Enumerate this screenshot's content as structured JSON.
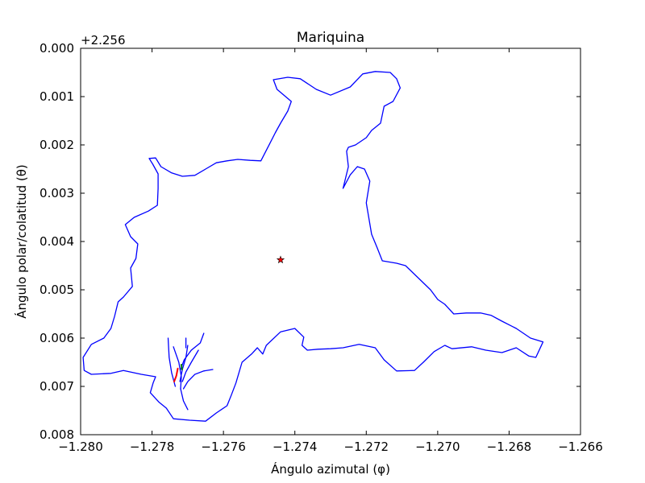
{
  "chart_data": {
    "type": "line",
    "title": "Mariquina",
    "xlabel": "Ángulo azimutal (φ)",
    "ylabel": "Ángulo polar/colatitud (θ)",
    "y_offset_label": "+2.256",
    "xlim": [
      -1.28,
      -1.266
    ],
    "ylim": [
      0.008,
      0.0
    ],
    "y_inverted": true,
    "grid": false,
    "x_ticks": [
      "−1.280",
      "−1.278",
      "−1.276",
      "−1.274",
      "−1.272",
      "−1.270",
      "−1.268",
      "−1.266"
    ],
    "y_ticks": [
      "0.000",
      "0.001",
      "0.002",
      "0.003",
      "0.004",
      "0.005",
      "0.006",
      "0.007",
      "0.008"
    ],
    "colors": {
      "boundary": "#0000ff",
      "river_red": "#ff0000",
      "river_green": "#008000",
      "marker": "#ff0000"
    },
    "boundary": [
      [
        -1.2746,
        0.00065
      ],
      [
        -1.2742,
        0.0006
      ],
      [
        -1.27385,
        0.00063
      ],
      [
        -1.2734,
        0.00085
      ],
      [
        -1.273,
        0.00097
      ],
      [
        -1.27245,
        0.0008
      ],
      [
        -1.2721,
        0.00053
      ],
      [
        -1.27175,
        0.00048
      ],
      [
        -1.27133,
        0.0005
      ],
      [
        -1.27115,
        0.00063
      ],
      [
        -1.27105,
        0.00082
      ],
      [
        -1.27125,
        0.0011
      ],
      [
        -1.2715,
        0.0012
      ],
      [
        -1.2716,
        0.00155
      ],
      [
        -1.27185,
        0.0017
      ],
      [
        -1.272,
        0.00185
      ],
      [
        -1.2723,
        0.002
      ],
      [
        -1.2725,
        0.00205
      ],
      [
        -1.27255,
        0.00213
      ],
      [
        -1.2725,
        0.00245
      ],
      [
        -1.27265,
        0.0029
      ],
      [
        -1.27245,
        0.00262
      ],
      [
        -1.27225,
        0.00245
      ],
      [
        -1.27205,
        0.0025
      ],
      [
        -1.2719,
        0.00275
      ],
      [
        -1.272,
        0.0032
      ],
      [
        -1.27185,
        0.00385
      ],
      [
        -1.2717,
        0.00412
      ],
      [
        -1.27155,
        0.0044
      ],
      [
        -1.27115,
        0.00445
      ],
      [
        -1.2709,
        0.0045
      ],
      [
        -1.27055,
        0.00475
      ],
      [
        -1.2702,
        0.005
      ],
      [
        -1.27,
        0.0052
      ],
      [
        -1.2698,
        0.0053
      ],
      [
        -1.26955,
        0.0055
      ],
      [
        -1.2692,
        0.00548
      ],
      [
        -1.2688,
        0.00548
      ],
      [
        -1.2685,
        0.00553
      ],
      [
        -1.2682,
        0.00565
      ],
      [
        -1.2678,
        0.0058
      ],
      [
        -1.2674,
        0.006
      ],
      [
        -1.26705,
        0.00608
      ],
      [
        -1.26725,
        0.0064
      ],
      [
        -1.26745,
        0.00637
      ],
      [
        -1.2678,
        0.0062
      ],
      [
        -1.2682,
        0.0063
      ],
      [
        -1.26865,
        0.00625
      ],
      [
        -1.26905,
        0.00618
      ],
      [
        -1.2696,
        0.00622
      ],
      [
        -1.2698,
        0.00615
      ],
      [
        -1.2701,
        0.00628
      ],
      [
        -1.2704,
        0.0065
      ],
      [
        -1.27065,
        0.00667
      ],
      [
        -1.27115,
        0.00668
      ],
      [
        -1.2715,
        0.00645
      ],
      [
        -1.27175,
        0.0062
      ],
      [
        -1.2722,
        0.00613
      ],
      [
        -1.27265,
        0.0062
      ],
      [
        -1.273,
        0.00622
      ],
      [
        -1.27335,
        0.00623
      ],
      [
        -1.27365,
        0.00625
      ],
      [
        -1.2738,
        0.00615
      ],
      [
        -1.27375,
        0.00598
      ],
      [
        -1.274,
        0.0058
      ],
      [
        -1.2744,
        0.00587
      ],
      [
        -1.2748,
        0.00615
      ],
      [
        -1.2749,
        0.00633
      ],
      [
        -1.27505,
        0.0062
      ],
      [
        -1.2752,
        0.00632
      ],
      [
        -1.27548,
        0.0065
      ],
      [
        -1.27565,
        0.00693
      ],
      [
        -1.27578,
        0.00718
      ],
      [
        -1.2759,
        0.0074
      ],
      [
        -1.2762,
        0.00755
      ],
      [
        -1.2765,
        0.00772
      ],
      [
        -1.27695,
        0.0077
      ],
      [
        -1.2774,
        0.00767
      ],
      [
        -1.2776,
        0.00745
      ],
      [
        -1.2778,
        0.00733
      ],
      [
        -1.27805,
        0.00713
      ],
      [
        -1.27797,
        0.00693
      ],
      [
        -1.2779,
        0.0068
      ],
      [
        -1.2783,
        0.00675
      ],
      [
        -1.2788,
        0.00667
      ],
      [
        -1.27915,
        0.00673
      ],
      [
        -1.2797,
        0.00675
      ],
      [
        -1.2799,
        0.00667
      ],
      [
        -1.27993,
        0.0064
      ],
      [
        -1.2797,
        0.00613
      ],
      [
        -1.27935,
        0.006
      ],
      [
        -1.27915,
        0.0058
      ],
      [
        -1.27905,
        0.00555
      ],
      [
        -1.27895,
        0.00525
      ],
      [
        -1.2788,
        0.00515
      ],
      [
        -1.27855,
        0.00493
      ],
      [
        -1.2786,
        0.00455
      ],
      [
        -1.27845,
        0.00435
      ],
      [
        -1.2784,
        0.00405
      ],
      [
        -1.2786,
        0.0039
      ],
      [
        -1.27875,
        0.00365
      ],
      [
        -1.2785,
        0.0035
      ],
      [
        -1.2781,
        0.00337
      ],
      [
        -1.27785,
        0.00325
      ],
      [
        -1.27783,
        0.0029
      ],
      [
        -1.27783,
        0.0026
      ],
      [
        -1.27798,
        0.0024
      ],
      [
        -1.27808,
        0.00228
      ],
      [
        -1.2779,
        0.00227
      ],
      [
        -1.27775,
        0.00245
      ],
      [
        -1.27745,
        0.00258
      ],
      [
        -1.27715,
        0.00265
      ],
      [
        -1.2768,
        0.00263
      ],
      [
        -1.2765,
        0.0025
      ],
      [
        -1.2762,
        0.00237
      ],
      [
        -1.2759,
        0.00233
      ],
      [
        -1.2756,
        0.0023
      ],
      [
        -1.27525,
        0.00232
      ],
      [
        -1.27495,
        0.00233
      ],
      [
        -1.2747,
        0.00197
      ],
      [
        -1.27455,
        0.00175
      ],
      [
        -1.2744,
        0.00155
      ],
      [
        -1.2742,
        0.0013
      ],
      [
        -1.2741,
        0.0011
      ],
      [
        -1.2745,
        0.00085
      ],
      [
        -1.2746,
        0.00065
      ]
    ],
    "inner_features": [
      {
        "color": "#0000ff",
        "points": [
          [
            -1.27755,
            0.006
          ],
          [
            -1.27752,
            0.0064
          ],
          [
            -1.27745,
            0.00672
          ],
          [
            -1.27735,
            0.007
          ]
        ]
      },
      {
        "color": "#0000ff",
        "points": [
          [
            -1.2774,
            0.00618
          ],
          [
            -1.27725,
            0.0065
          ],
          [
            -1.27718,
            0.0068
          ],
          [
            -1.2772,
            0.00705
          ]
        ]
      },
      {
        "color": "#0000ff",
        "points": [
          [
            -1.277,
            0.00615
          ],
          [
            -1.27705,
            0.0064
          ],
          [
            -1.27715,
            0.00665
          ],
          [
            -1.27722,
            0.0069
          ]
        ]
      },
      {
        "color": "#0000ff",
        "points": [
          [
            -1.27655,
            0.0059
          ],
          [
            -1.27665,
            0.0061
          ],
          [
            -1.2769,
            0.00625
          ],
          [
            -1.2771,
            0.00645
          ],
          [
            -1.2772,
            0.00665
          ]
        ]
      },
      {
        "color": "#0000ff",
        "points": [
          [
            -1.2767,
            0.00625
          ],
          [
            -1.2769,
            0.0065
          ],
          [
            -1.27705,
            0.0067
          ],
          [
            -1.27715,
            0.0069
          ]
        ]
      },
      {
        "color": "#0000ff",
        "points": [
          [
            -1.2763,
            0.00665
          ],
          [
            -1.27655,
            0.00668
          ],
          [
            -1.2768,
            0.00675
          ],
          [
            -1.277,
            0.0069
          ],
          [
            -1.27712,
            0.00705
          ]
        ]
      },
      {
        "color": "#0000ff",
        "points": [
          [
            -1.2772,
            0.00705
          ],
          [
            -1.27712,
            0.0073
          ],
          [
            -1.277,
            0.00748
          ]
        ]
      },
      {
        "color": "#0000ff",
        "points": [
          [
            -1.27705,
            0.006
          ],
          [
            -1.27705,
            0.0062
          ]
        ]
      },
      {
        "color": "#ff0000",
        "points": [
          [
            -1.27728,
            0.00663
          ],
          [
            -1.27732,
            0.00678
          ],
          [
            -1.27738,
            0.0069
          ]
        ]
      },
      {
        "color": "#008000",
        "points": [
          [
            -1.27718,
            0.00655
          ],
          [
            -1.27716,
            0.00665
          ]
        ]
      }
    ],
    "marker": {
      "x": -1.2744,
      "y": 0.00438,
      "shape": "star",
      "color": "#ff0000"
    }
  }
}
